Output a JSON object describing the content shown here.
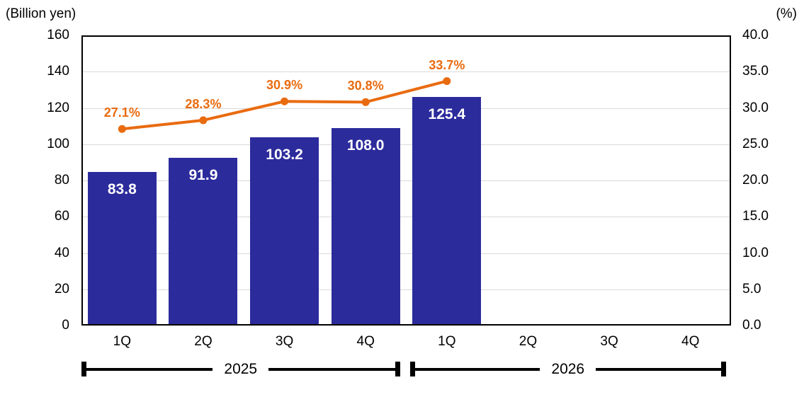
{
  "chart_data": {
    "type": "bar+line combo",
    "title": "",
    "left_axis": {
      "label": "(Billion yen)",
      "min": 0,
      "max": 160,
      "step": 20,
      "ticks": [
        "160",
        "140",
        "120",
        "100",
        "80",
        "60",
        "40",
        "20",
        "0"
      ]
    },
    "right_axis": {
      "label": "(%)",
      "min": 0,
      "max": 40,
      "step": 5,
      "ticks": [
        "40.0",
        "35.0",
        "30.0",
        "25.0",
        "20.0",
        "15.0",
        "10.0",
        "5.0",
        "0.0"
      ]
    },
    "categories": [
      "1Q",
      "2Q",
      "3Q",
      "4Q",
      "1Q",
      "2Q",
      "3Q",
      "4Q"
    ],
    "year_groups": [
      {
        "label": "2025",
        "span": [
          0,
          3
        ]
      },
      {
        "label": "2026",
        "span": [
          4,
          7
        ]
      }
    ],
    "series": [
      {
        "name": "revenue-bars",
        "type": "bar",
        "axis": "left",
        "color": "#2c2b9c",
        "values": [
          83.8,
          91.9,
          103.2,
          108.0,
          125.4,
          null,
          null,
          null
        ],
        "labels": [
          "83.8",
          "91.9",
          "103.2",
          "108.0",
          "125.4",
          "",
          "",
          ""
        ],
        "label_color": "#ffffff"
      },
      {
        "name": "ratio-line",
        "type": "line",
        "axis": "right",
        "color": "#e96b10",
        "values": [
          27.1,
          28.3,
          30.9,
          30.8,
          33.7,
          null,
          null,
          null
        ],
        "labels": [
          "27.1%",
          "28.3%",
          "30.9%",
          "30.8%",
          "33.7%",
          "",
          "",
          ""
        ]
      }
    ],
    "layout_hints": {
      "gridlines": "horizontal",
      "gridline_color": "#d9d9d9",
      "legend": "none",
      "plot_border_color": "#000000"
    }
  }
}
